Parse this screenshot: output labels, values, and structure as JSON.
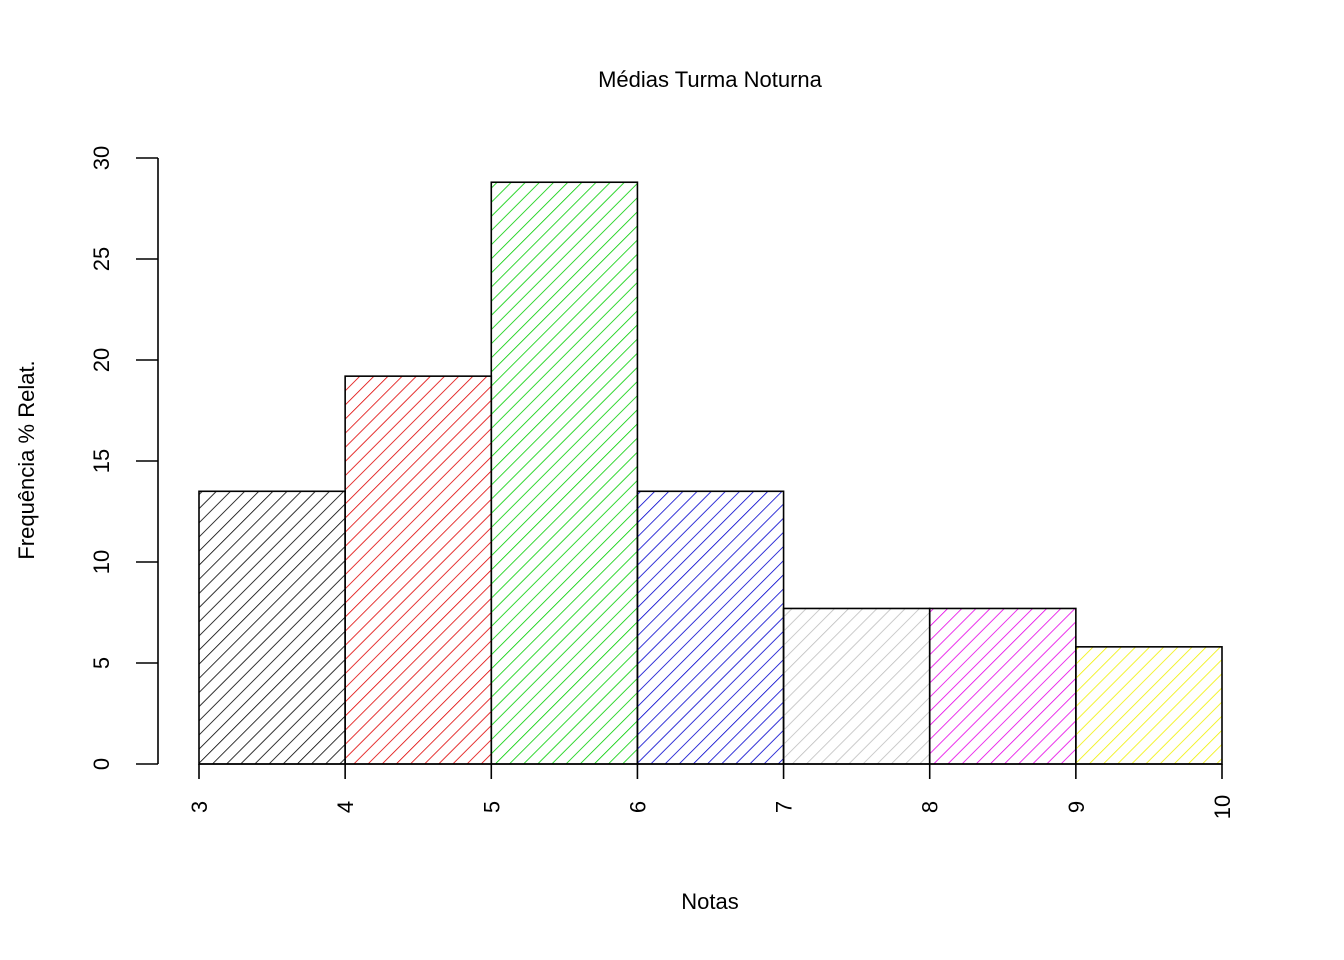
{
  "chart_data": {
    "type": "bar",
    "title": "Médias Turma Noturna",
    "xlabel": "Notas",
    "ylabel": "Frequência  % Relat.",
    "bins": [
      {
        "from": 3,
        "to": 4,
        "value": 13.5,
        "color": "#000000"
      },
      {
        "from": 4,
        "to": 5,
        "value": 19.2,
        "color": "#DF0000"
      },
      {
        "from": 5,
        "to": 6,
        "value": 28.8,
        "color": "#00CD00"
      },
      {
        "from": 6,
        "to": 7,
        "value": 13.5,
        "color": "#0000CD"
      },
      {
        "from": 7,
        "to": 8,
        "value": 7.7,
        "color": "#BEBEBE"
      },
      {
        "from": 8,
        "to": 9,
        "value": 7.7,
        "color": "#E600E6"
      },
      {
        "from": 9,
        "to": 10,
        "value": 5.8,
        "color": "#F0F000"
      }
    ],
    "xticks": [
      "3",
      "4",
      "5",
      "6",
      "7",
      "8",
      "9",
      "10"
    ],
    "yticks": [
      "0",
      "5",
      "10",
      "15",
      "20",
      "25",
      "30"
    ],
    "xlim": [
      3,
      10
    ],
    "ylim": [
      0,
      30
    ],
    "grid": false,
    "fill": "hatched"
  }
}
